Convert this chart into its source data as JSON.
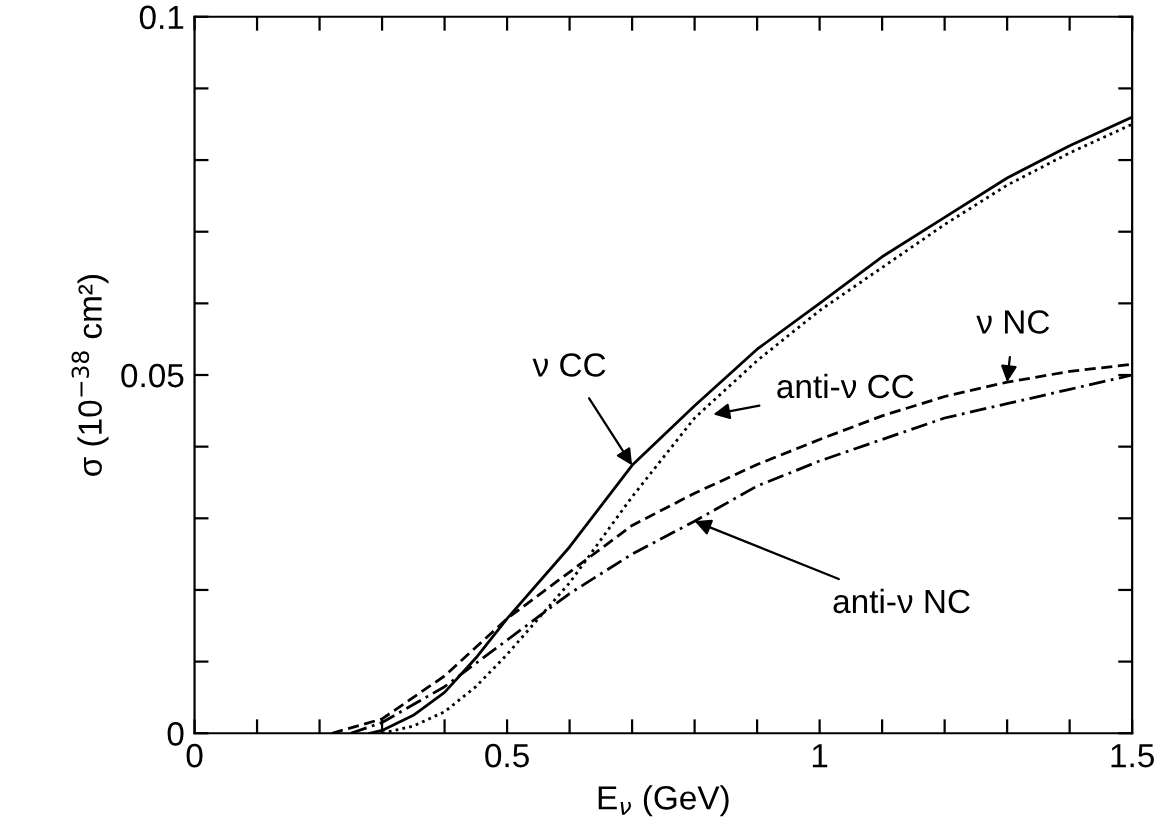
{
  "chart_data": {
    "type": "line",
    "xlabel": "E$_{ν}$ (GeV)",
    "ylabel": "σ (10$^{−38}$ cm²)",
    "xlim": [
      0,
      1.5
    ],
    "ylim": [
      0,
      0.1
    ],
    "xticks": [
      0,
      {
        "value": 0.1,
        "label": null
      },
      {
        "value": 0.2,
        "label": null
      },
      {
        "value": 0.3,
        "label": null
      },
      {
        "value": 0.4,
        "label": null
      },
      0.5,
      {
        "value": 0.6,
        "label": null
      },
      {
        "value": 0.7,
        "label": null
      },
      {
        "value": 0.8,
        "label": null
      },
      {
        "value": 0.9,
        "label": null
      },
      1,
      {
        "value": 1.1,
        "label": null
      },
      {
        "value": 1.2,
        "label": null
      },
      {
        "value": 1.3,
        "label": null
      },
      {
        "value": 1.4,
        "label": null
      },
      1.5
    ],
    "yticks": [
      0,
      {
        "value": 0.01,
        "label": null
      },
      {
        "value": 0.02,
        "label": null
      },
      {
        "value": 0.03,
        "label": null
      },
      {
        "value": 0.04,
        "label": null
      },
      0.05,
      {
        "value": 0.06,
        "label": null
      },
      {
        "value": 0.07,
        "label": null
      },
      {
        "value": 0.08,
        "label": null
      },
      {
        "value": 0.09,
        "label": null
      },
      0.1
    ],
    "grid": false,
    "legend": false,
    "marker": "none",
    "series": [
      {
        "color": "#000000",
        "line_style": "solid",
        "x": [
          0.28,
          0.3,
          0.35,
          0.4,
          0.45,
          0.5,
          0.6,
          0.7,
          0.8,
          0.9,
          1.0,
          1.1,
          1.2,
          1.3,
          1.4,
          1.5
        ],
        "values": [
          0,
          0.0004,
          0.0025,
          0.0057,
          0.0105,
          0.016,
          0.026,
          0.0374,
          0.0457,
          0.0536,
          0.06,
          0.0665,
          0.072,
          0.0775,
          0.082,
          0.086
        ]
      },
      {
        "color": "#000000",
        "line_style": "dotted",
        "x": [
          0.3,
          0.35,
          0.4,
          0.45,
          0.5,
          0.6,
          0.7,
          0.8,
          0.9,
          1.0,
          1.1,
          1.2,
          1.3,
          1.4,
          1.5
        ],
        "values": [
          0,
          0.001,
          0.003,
          0.0065,
          0.011,
          0.021,
          0.033,
          0.044,
          0.052,
          0.059,
          0.065,
          0.071,
          0.0765,
          0.081,
          0.085
        ]
      },
      {
        "color": "#000000",
        "line_style": "dashed",
        "x": [
          0.22,
          0.3,
          0.4,
          0.5,
          0.6,
          0.7,
          0.8,
          0.9,
          1.0,
          1.1,
          1.2,
          1.3,
          1.4,
          1.5
        ],
        "values": [
          0,
          0.002,
          0.008,
          0.016,
          0.0225,
          0.029,
          0.0335,
          0.0375,
          0.041,
          0.0443,
          0.047,
          0.049,
          0.0505,
          0.0515
        ]
      },
      {
        "color": "#000000",
        "line_style": "dashdot",
        "x": [
          0.25,
          0.3,
          0.4,
          0.5,
          0.6,
          0.7,
          0.8,
          0.9,
          1.0,
          1.1,
          1.2,
          1.3,
          1.4,
          1.5
        ],
        "values": [
          0,
          0.0015,
          0.0065,
          0.013,
          0.0195,
          0.025,
          0.0296,
          0.0345,
          0.038,
          0.041,
          0.044,
          0.046,
          0.048,
          0.05
        ]
      }
    ],
    "annotations": [
      {
        "text": "ν CC",
        "x": 0.7,
        "y": 0.0374
      },
      {
        "text": "anti-ν CC",
        "x": 0.83,
        "y": 0.0445
      },
      {
        "text": "ν NC",
        "x": 1.3,
        "y": 0.049
      },
      {
        "text": "anti-ν NC",
        "x": 0.8,
        "y": 0.0296
      }
    ]
  }
}
